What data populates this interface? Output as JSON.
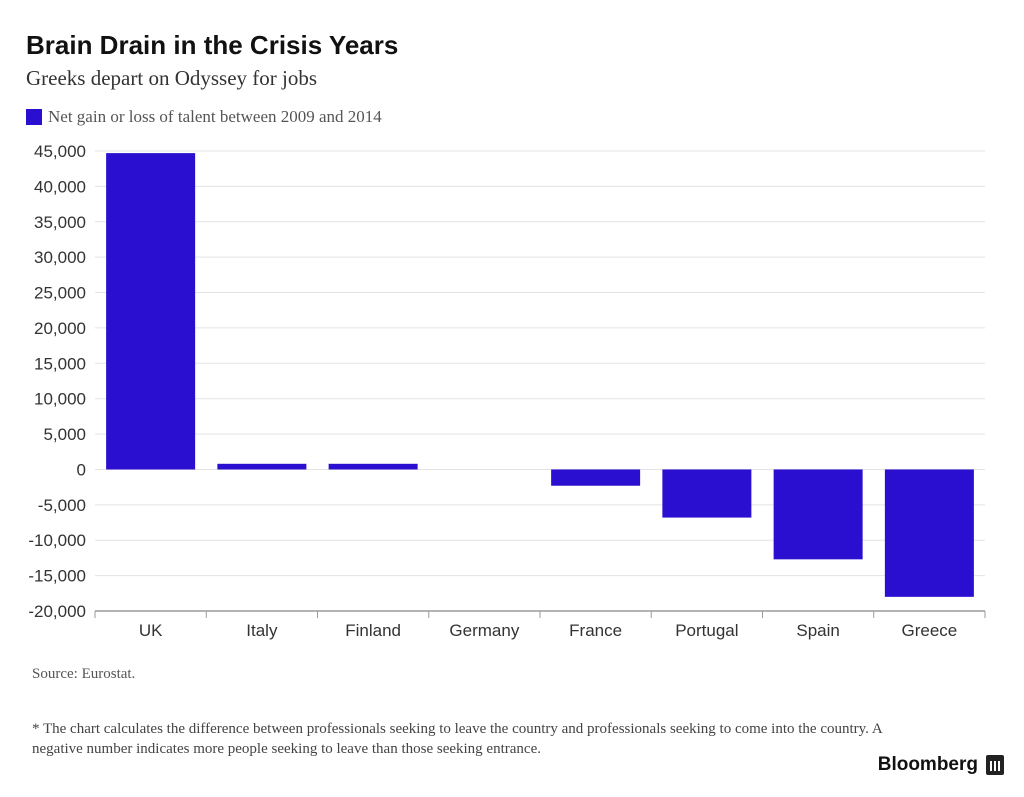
{
  "title": "Brain Drain in the Crisis Years",
  "subtitle": "Greeks depart on Odyssey for jobs",
  "source": "Source: Eurostat.",
  "footnote": "* The chart calculates the difference between professionals seeking to leave the country and professionals seeking to come into the country. A negative number indicates more people seeking to leave than those seeking entrance.",
  "brand": "Bloomberg",
  "colors": {
    "bar": "#2b0fd0",
    "grid": "#e3e3e3",
    "axis": "#9a9a9a",
    "tick_text": "#333333"
  },
  "chart_data": {
    "type": "bar",
    "title": "Brain Drain in the Crisis Years",
    "subtitle": "Greeks depart on Odyssey for jobs",
    "xlabel": "",
    "ylabel": "",
    "categories": [
      "UK",
      "Italy",
      "Finland",
      "Germany",
      "France",
      "Portugal",
      "Spain",
      "Greece"
    ],
    "series": [
      {
        "name": "Net gain or loss of talent between 2009 and 2014",
        "values": [
          44700,
          800,
          800,
          0,
          -2300,
          -6800,
          -12700,
          -18000
        ]
      }
    ],
    "ylim": [
      -20000,
      45000
    ],
    "yticks": [
      45000,
      40000,
      35000,
      30000,
      25000,
      20000,
      15000,
      10000,
      5000,
      0,
      -5000,
      -10000,
      -15000,
      -20000
    ],
    "ytick_labels": [
      "45,000",
      "40,000",
      "35,000",
      "30,000",
      "25,000",
      "20,000",
      "15,000",
      "10,000",
      "5,000",
      "0",
      "-5,000",
      "-10,000",
      "-15,000",
      "-20,000"
    ],
    "grid": true,
    "legend": "top-left"
  }
}
